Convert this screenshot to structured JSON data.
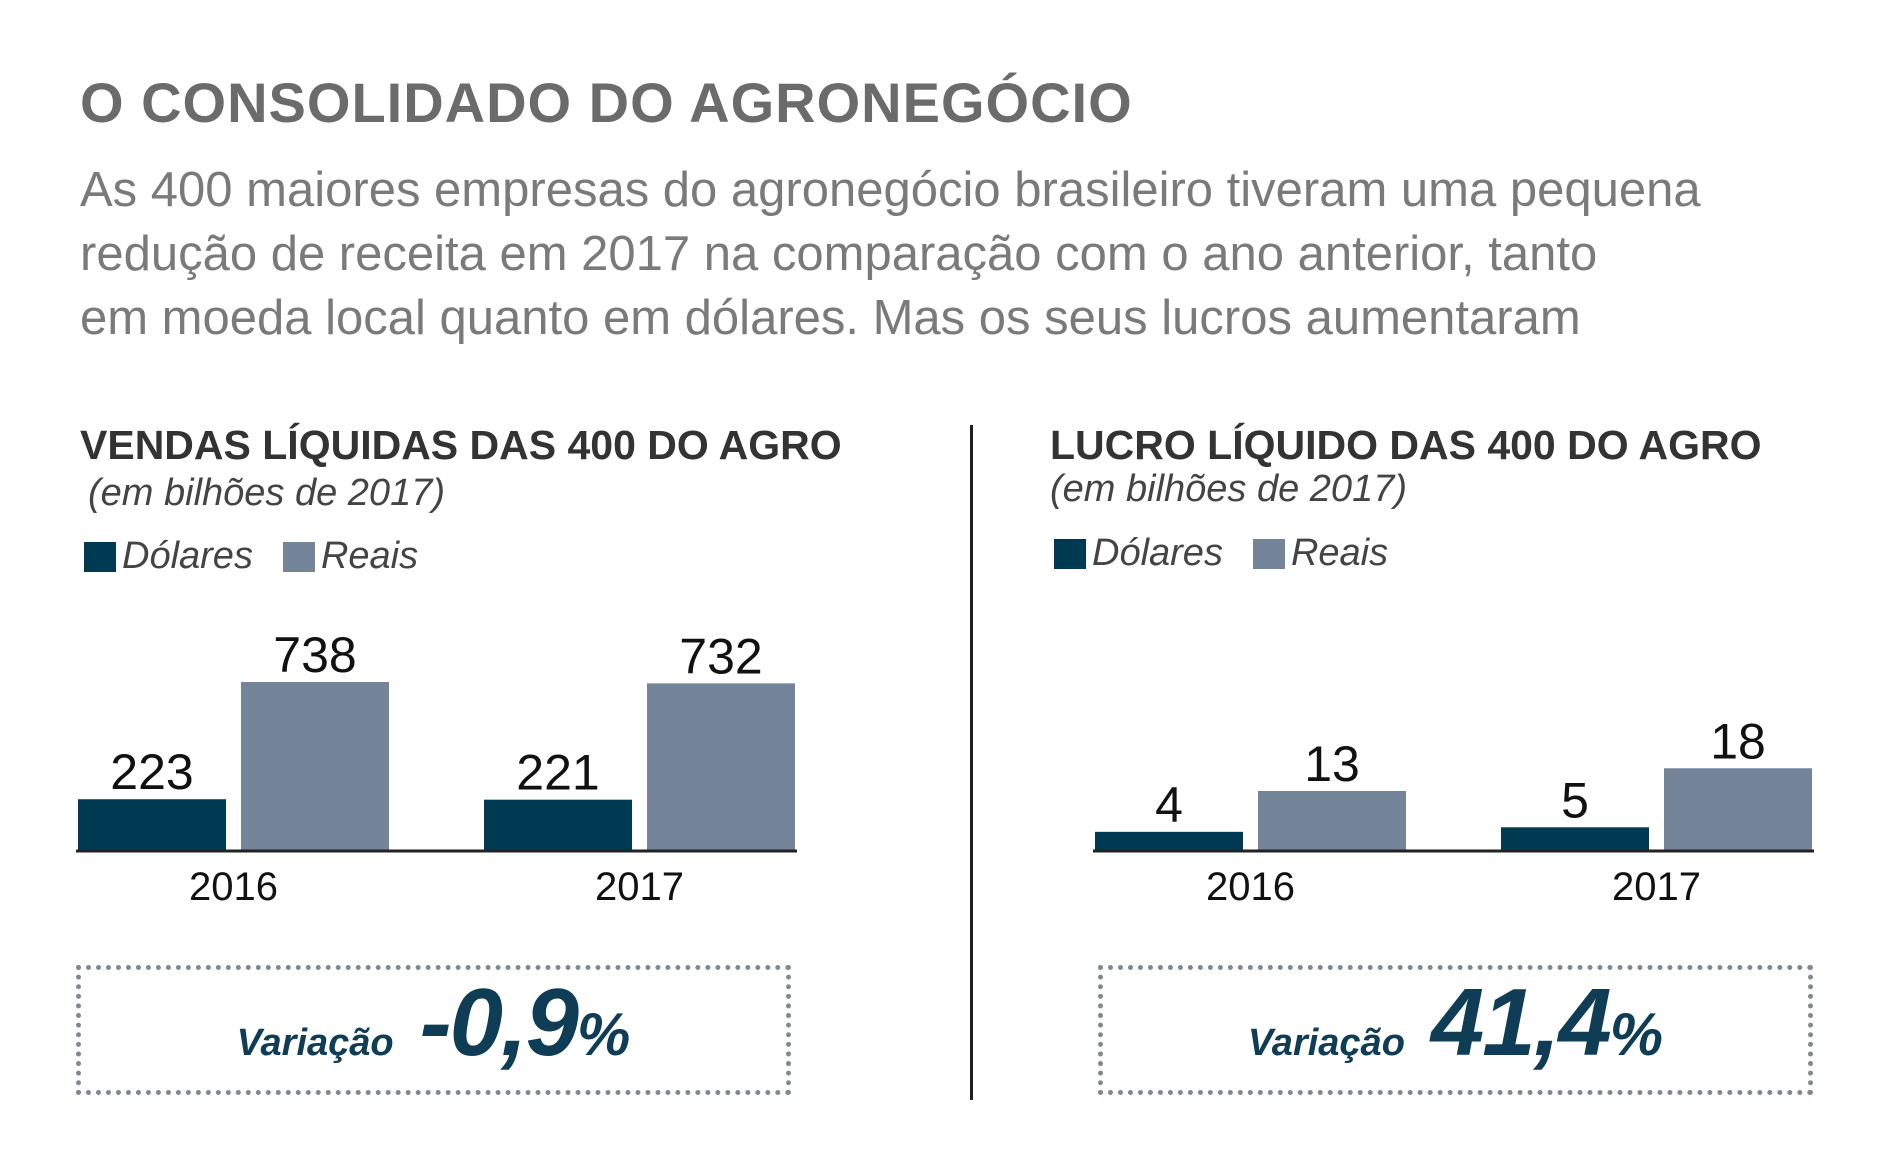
{
  "header": {
    "title": "O CONSOLIDADO DO AGRONEGÓCIO",
    "subtitle_lines": [
      "As 400 maiores empresas do agronegócio brasileiro tiveram uma pequena",
      "redução de receita em 2017 na comparação com o ano anterior, tanto",
      "em moeda local quanto em dólares. Mas os seus lucros aumentaram"
    ]
  },
  "colors": {
    "dolares": "#003a52",
    "reais": "#748499",
    "variation": "#0f3d55"
  },
  "chart_data": [
    {
      "type": "bar",
      "title": "VENDAS LÍQUIDAS DAS 400 DO AGRO",
      "unit": "(em bilhões de 2017)",
      "categories": [
        "2016",
        "2017"
      ],
      "series": [
        {
          "name": "Dólares",
          "values": [
            223,
            221
          ]
        },
        {
          "name": "Reais",
          "values": [
            738,
            732
          ]
        }
      ],
      "ylim": [
        0,
        738
      ],
      "legend": "top-left",
      "variation_label": "Variação",
      "variation_value": "-0,9",
      "variation_unit": "%"
    },
    {
      "type": "bar",
      "title": "LUCRO LÍQUIDO DAS 400 DO AGRO",
      "unit": "(em bilhões de 2017)",
      "categories": [
        "2016",
        "2017"
      ],
      "series": [
        {
          "name": "Dólares",
          "values": [
            4,
            5
          ]
        },
        {
          "name": "Reais",
          "values": [
            13,
            18
          ]
        }
      ],
      "ylim": [
        0,
        37
      ],
      "legend": "top-left",
      "variation_label": "Variação",
      "variation_value": "41,4",
      "variation_unit": "%"
    }
  ]
}
